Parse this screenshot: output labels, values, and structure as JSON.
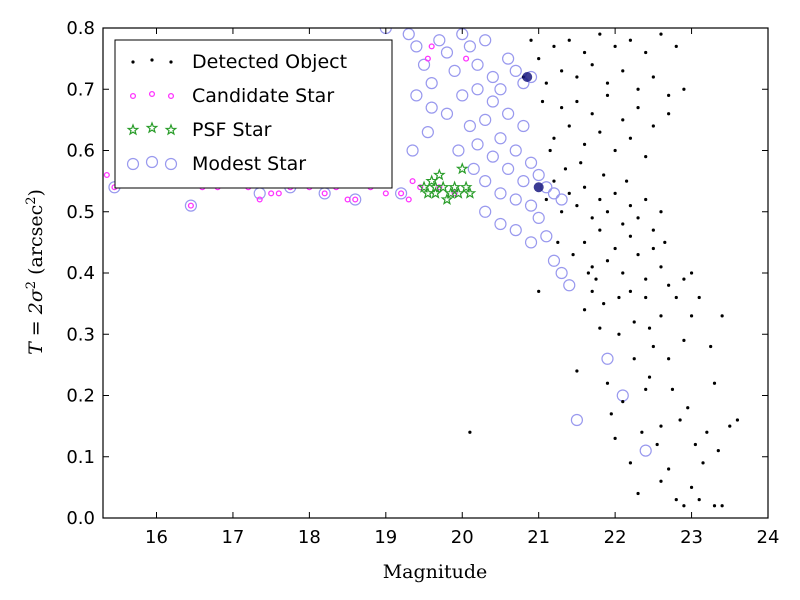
{
  "chart_data": {
    "type": "scatter",
    "xlabel": "Magnitude",
    "ylabel_prefix": "T = 2σ",
    "ylabel_suffix": " (arcsec",
    "ylabel_close": ")",
    "xlim": [
      15.3,
      24.0
    ],
    "ylim": [
      0.0,
      0.8
    ],
    "xticks": [
      "16",
      "17",
      "18",
      "19",
      "20",
      "21",
      "22",
      "23",
      "24"
    ],
    "xtick_values": [
      16,
      17,
      18,
      19,
      20,
      21,
      22,
      23,
      24
    ],
    "yticks": [
      "0.0",
      "0.1",
      "0.2",
      "0.3",
      "0.4",
      "0.5",
      "0.6",
      "0.7",
      "0.8"
    ],
    "ytick_values": [
      0.0,
      0.1,
      0.2,
      0.3,
      0.4,
      0.5,
      0.6,
      0.7,
      0.8
    ],
    "legend_position": "upper-left",
    "series": [
      {
        "name": "Detected Object",
        "marker": "dot",
        "color": "#000000",
        "points": [
          [
            20.1,
            0.14
          ],
          [
            21.0,
            0.37
          ],
          [
            21.5,
            0.24
          ],
          [
            21.6,
            0.34
          ],
          [
            21.7,
            0.37
          ],
          [
            21.8,
            0.31
          ],
          [
            21.9,
            0.22
          ],
          [
            21.95,
            0.17
          ],
          [
            22.0,
            0.13
          ],
          [
            22.1,
            0.19
          ],
          [
            22.2,
            0.09
          ],
          [
            22.3,
            0.04
          ],
          [
            22.35,
            0.14
          ],
          [
            22.4,
            0.21
          ],
          [
            22.5,
            0.28
          ],
          [
            22.55,
            0.12
          ],
          [
            22.6,
            0.06
          ],
          [
            22.7,
            0.08
          ],
          [
            22.8,
            0.03
          ],
          [
            22.85,
            0.16
          ],
          [
            22.9,
            0.02
          ],
          [
            23.0,
            0.05
          ],
          [
            23.05,
            0.12
          ],
          [
            23.1,
            0.03
          ],
          [
            23.2,
            0.14
          ],
          [
            23.3,
            0.02
          ],
          [
            23.4,
            0.02
          ],
          [
            23.5,
            0.15
          ],
          [
            23.6,
            0.16
          ],
          [
            23.35,
            0.11
          ],
          [
            22.25,
            0.32
          ],
          [
            22.4,
            0.36
          ],
          [
            22.6,
            0.33
          ],
          [
            22.7,
            0.26
          ],
          [
            22.9,
            0.29
          ],
          [
            23.0,
            0.33
          ],
          [
            23.1,
            0.36
          ],
          [
            23.25,
            0.28
          ],
          [
            23.4,
            0.33
          ],
          [
            23.3,
            0.22
          ],
          [
            21.6,
            0.45
          ],
          [
            21.7,
            0.41
          ],
          [
            21.8,
            0.47
          ],
          [
            21.9,
            0.42
          ],
          [
            22.0,
            0.44
          ],
          [
            22.1,
            0.4
          ],
          [
            22.2,
            0.46
          ],
          [
            22.3,
            0.43
          ],
          [
            22.4,
            0.39
          ],
          [
            22.5,
            0.44
          ],
          [
            22.6,
            0.41
          ],
          [
            22.7,
            0.38
          ],
          [
            22.8,
            0.36
          ],
          [
            22.9,
            0.39
          ],
          [
            23.0,
            0.4
          ],
          [
            22.2,
            0.37
          ],
          [
            22.45,
            0.31
          ],
          [
            22.65,
            0.45
          ],
          [
            22.05,
            0.36
          ],
          [
            21.75,
            0.39
          ],
          [
            21.1,
            0.52
          ],
          [
            21.2,
            0.55
          ],
          [
            21.3,
            0.5
          ],
          [
            21.4,
            0.53
          ],
          [
            21.5,
            0.51
          ],
          [
            21.6,
            0.54
          ],
          [
            21.7,
            0.49
          ],
          [
            21.8,
            0.52
          ],
          [
            21.9,
            0.5
          ],
          [
            22.0,
            0.53
          ],
          [
            22.1,
            0.48
          ],
          [
            22.2,
            0.51
          ],
          [
            22.3,
            0.49
          ],
          [
            22.4,
            0.52
          ],
          [
            22.5,
            0.47
          ],
          [
            22.6,
            0.5
          ],
          [
            21.35,
            0.57
          ],
          [
            21.55,
            0.58
          ],
          [
            21.85,
            0.56
          ],
          [
            22.15,
            0.55
          ],
          [
            21.2,
            0.62
          ],
          [
            21.4,
            0.64
          ],
          [
            21.6,
            0.61
          ],
          [
            21.8,
            0.63
          ],
          [
            22.0,
            0.6
          ],
          [
            22.2,
            0.62
          ],
          [
            22.4,
            0.59
          ],
          [
            21.3,
            0.67
          ],
          [
            21.5,
            0.68
          ],
          [
            21.7,
            0.66
          ],
          [
            21.9,
            0.69
          ],
          [
            22.1,
            0.65
          ],
          [
            22.3,
            0.67
          ],
          [
            22.5,
            0.64
          ],
          [
            22.7,
            0.66
          ],
          [
            21.1,
            0.71
          ],
          [
            21.3,
            0.73
          ],
          [
            21.5,
            0.72
          ],
          [
            21.7,
            0.74
          ],
          [
            21.9,
            0.71
          ],
          [
            22.1,
            0.73
          ],
          [
            22.3,
            0.7
          ],
          [
            22.5,
            0.72
          ],
          [
            22.7,
            0.69
          ],
          [
            22.9,
            0.7
          ],
          [
            21.2,
            0.77
          ],
          [
            21.4,
            0.78
          ],
          [
            21.6,
            0.76
          ],
          [
            21.8,
            0.79
          ],
          [
            22.0,
            0.77
          ],
          [
            22.2,
            0.78
          ],
          [
            22.4,
            0.76
          ],
          [
            22.6,
            0.79
          ],
          [
            22.8,
            0.77
          ],
          [
            20.9,
            0.78
          ],
          [
            21.0,
            0.75
          ],
          [
            20.8,
            0.72
          ],
          [
            21.05,
            0.68
          ],
          [
            21.15,
            0.6
          ],
          [
            21.25,
            0.45
          ],
          [
            21.45,
            0.43
          ],
          [
            21.65,
            0.4
          ],
          [
            21.85,
            0.35
          ],
          [
            22.05,
            0.3
          ],
          [
            22.25,
            0.26
          ],
          [
            22.45,
            0.23
          ],
          [
            22.75,
            0.21
          ],
          [
            22.95,
            0.18
          ],
          [
            23.15,
            0.09
          ],
          [
            22.6,
            0.15
          ]
        ]
      },
      {
        "name": "Candidate Star",
        "marker": "ring",
        "color": "#ff33ff",
        "points": [
          [
            15.35,
            0.56
          ],
          [
            15.45,
            0.54
          ],
          [
            15.8,
            0.55
          ],
          [
            16.0,
            0.56
          ],
          [
            16.2,
            0.55
          ],
          [
            16.45,
            0.51
          ],
          [
            16.6,
            0.54
          ],
          [
            16.8,
            0.54
          ],
          [
            17.0,
            0.55
          ],
          [
            17.2,
            0.54
          ],
          [
            17.35,
            0.52
          ],
          [
            17.5,
            0.53
          ],
          [
            17.6,
            0.53
          ],
          [
            17.75,
            0.54
          ],
          [
            18.0,
            0.54
          ],
          [
            18.2,
            0.53
          ],
          [
            18.35,
            0.54
          ],
          [
            18.5,
            0.52
          ],
          [
            18.6,
            0.52
          ],
          [
            18.8,
            0.54
          ],
          [
            19.0,
            0.53
          ],
          [
            19.2,
            0.53
          ],
          [
            19.3,
            0.52
          ],
          [
            19.35,
            0.55
          ],
          [
            19.45,
            0.54
          ],
          [
            19.55,
            0.75
          ],
          [
            19.6,
            0.77
          ],
          [
            20.05,
            0.75
          ],
          [
            19.7,
            0.54
          ],
          [
            19.9,
            0.53
          ]
        ]
      },
      {
        "name": "PSF Star",
        "marker": "star",
        "color": "#2a9d2a",
        "points": [
          [
            19.5,
            0.54
          ],
          [
            19.55,
            0.53
          ],
          [
            19.6,
            0.55
          ],
          [
            19.65,
            0.54
          ],
          [
            19.7,
            0.56
          ],
          [
            19.75,
            0.54
          ],
          [
            19.8,
            0.52
          ],
          [
            19.85,
            0.53
          ],
          [
            19.9,
            0.54
          ],
          [
            19.95,
            0.53
          ],
          [
            20.0,
            0.57
          ],
          [
            20.05,
            0.54
          ],
          [
            20.1,
            0.53
          ],
          [
            19.65,
            0.53
          ]
        ]
      },
      {
        "name": "Modest Star",
        "marker": "circle",
        "color": "#9999ee",
        "points": [
          [
            15.45,
            0.54
          ],
          [
            15.8,
            0.56
          ],
          [
            16.2,
            0.55
          ],
          [
            16.45,
            0.51
          ],
          [
            17.0,
            0.55
          ],
          [
            17.35,
            0.53
          ],
          [
            17.75,
            0.54
          ],
          [
            18.2,
            0.53
          ],
          [
            18.6,
            0.52
          ],
          [
            19.2,
            0.53
          ],
          [
            19.0,
            0.8
          ],
          [
            19.3,
            0.79
          ],
          [
            19.4,
            0.77
          ],
          [
            19.5,
            0.74
          ],
          [
            19.6,
            0.71
          ],
          [
            19.7,
            0.78
          ],
          [
            19.8,
            0.76
          ],
          [
            19.9,
            0.73
          ],
          [
            20.0,
            0.79
          ],
          [
            20.1,
            0.77
          ],
          [
            20.2,
            0.74
          ],
          [
            20.3,
            0.78
          ],
          [
            20.4,
            0.72
          ],
          [
            20.5,
            0.7
          ],
          [
            20.6,
            0.75
          ],
          [
            20.7,
            0.73
          ],
          [
            20.8,
            0.71
          ],
          [
            20.9,
            0.72
          ],
          [
            19.4,
            0.69
          ],
          [
            19.6,
            0.67
          ],
          [
            19.8,
            0.66
          ],
          [
            20.0,
            0.69
          ],
          [
            20.2,
            0.7
          ],
          [
            20.4,
            0.68
          ],
          [
            20.6,
            0.66
          ],
          [
            20.8,
            0.64
          ],
          [
            20.3,
            0.65
          ],
          [
            20.5,
            0.62
          ],
          [
            20.7,
            0.6
          ],
          [
            20.9,
            0.58
          ],
          [
            20.2,
            0.61
          ],
          [
            20.4,
            0.59
          ],
          [
            20.6,
            0.57
          ],
          [
            20.8,
            0.55
          ],
          [
            21.0,
            0.56
          ],
          [
            21.1,
            0.54
          ],
          [
            21.2,
            0.53
          ],
          [
            21.3,
            0.52
          ],
          [
            20.5,
            0.53
          ],
          [
            20.7,
            0.52
          ],
          [
            20.9,
            0.51
          ],
          [
            21.0,
            0.49
          ],
          [
            20.3,
            0.5
          ],
          [
            20.5,
            0.48
          ],
          [
            20.7,
            0.47
          ],
          [
            20.9,
            0.45
          ],
          [
            21.1,
            0.46
          ],
          [
            21.2,
            0.42
          ],
          [
            21.3,
            0.4
          ],
          [
            21.4,
            0.38
          ],
          [
            21.5,
            0.16
          ],
          [
            21.9,
            0.26
          ],
          [
            22.1,
            0.2
          ],
          [
            22.4,
            0.11
          ],
          [
            19.55,
            0.63
          ],
          [
            19.35,
            0.6
          ],
          [
            20.1,
            0.64
          ],
          [
            20.3,
            0.55
          ],
          [
            19.95,
            0.6
          ],
          [
            20.15,
            0.57
          ]
        ]
      }
    ],
    "highlight_points": [
      [
        20.85,
        0.72
      ],
      [
        21.0,
        0.54
      ]
    ]
  }
}
